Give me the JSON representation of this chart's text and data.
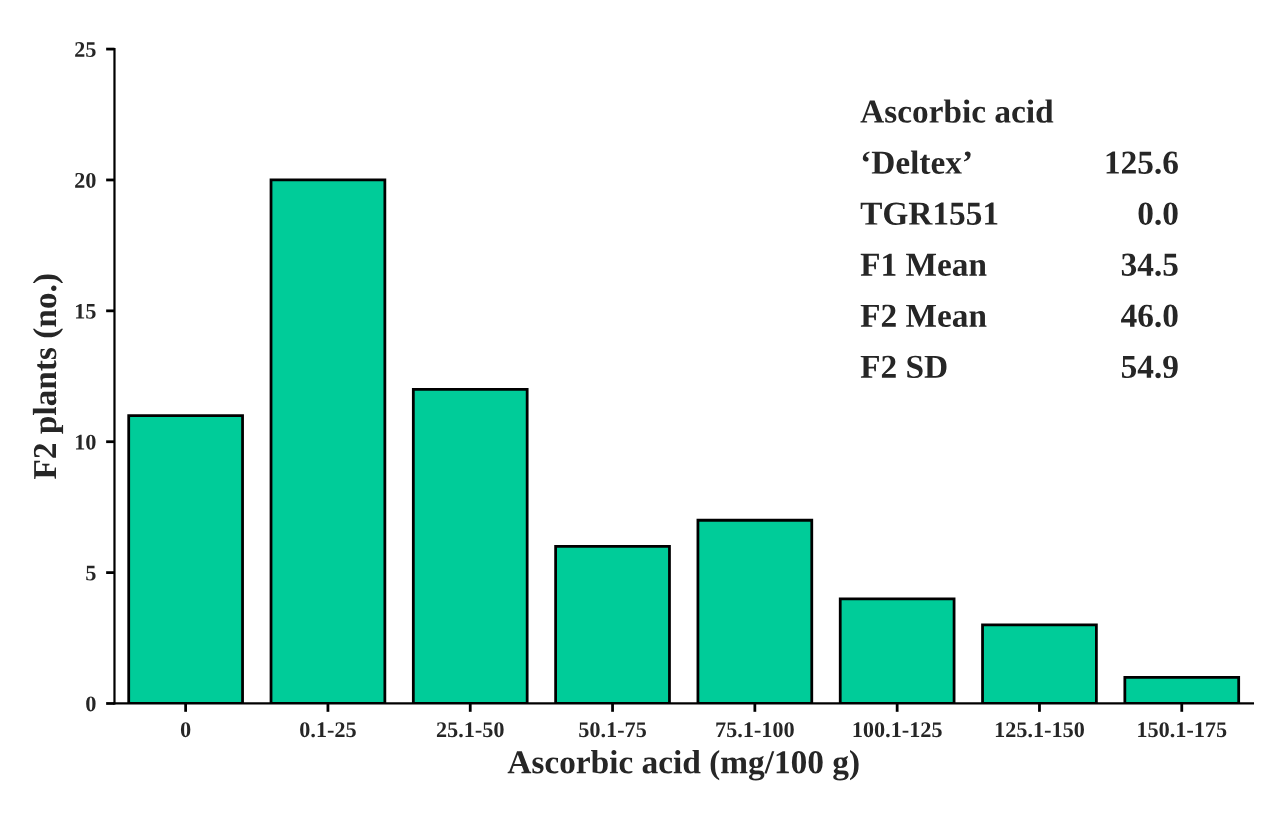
{
  "chart_data": {
    "type": "bar",
    "xlabel": "Ascorbic acid (mg/100 g)",
    "ylabel": "F2 plants (no.)",
    "categories": [
      "0",
      "0.1-25",
      "25.1-50",
      "50.1-75",
      "75.1-100",
      "100.1-125",
      "125.1-150",
      "150.1-175"
    ],
    "values": [
      11,
      20,
      12,
      6,
      7,
      4,
      3,
      1
    ],
    "color": "#00cc99",
    "ylim": [
      0,
      25
    ],
    "yticks": [
      0,
      5,
      10,
      15,
      20,
      25
    ],
    "grid": false,
    "legend": false,
    "annotations": [
      "Ascorbic acid",
      "‘Deltex’",
      "125.6",
      "TGR1551",
      "0.0",
      "F1 Mean",
      "34.5",
      "F2 Mean",
      "46.0",
      "F2 SD",
      "54.9"
    ]
  }
}
